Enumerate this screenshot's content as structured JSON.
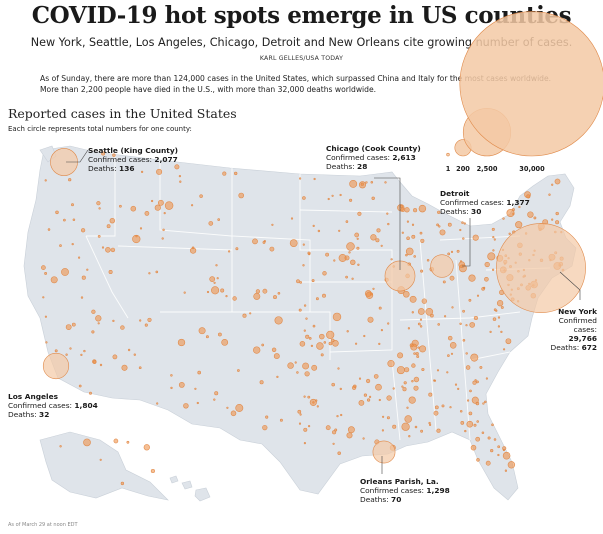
{
  "headline": "COVID-19 hot spots emerge in US counties",
  "dek": "New York, Seattle, Los Angeles, Chicago, Detroit and New Orleans cite growing number of cases.",
  "credit": "KARL GELLES/USA TODAY",
  "intro": [
    "As of Sunday, there are more than 124,000 cases in the United States, which surpassed China and Italy for the most cases worldwide.",
    "More than 2,200 people have died in the U.S., with more than 32,000 deaths worldwide."
  ],
  "section_title": "Reported cases in the United States",
  "section_subtitle": "Each circle represents total numbers for one county:",
  "footnote": "As of March 29 at noon EDT",
  "legend": {
    "items": [
      {
        "label": "1",
        "value": 1
      },
      {
        "label": "200",
        "value": 200
      },
      {
        "label": "2,500",
        "value": 2500
      },
      {
        "label": "30,000",
        "value": 30000
      }
    ]
  },
  "callouts": [
    {
      "name": "Seattle (King County)",
      "lines": [
        {
          "t": "Confirmed cases: ",
          "v": "2,077"
        },
        {
          "t": "Deaths: ",
          "v": "136"
        }
      ],
      "cases": 2077
    },
    {
      "name": "Chicago (Cook County)",
      "lines": [
        {
          "t": "Confirmed cases: ",
          "v": "2,613"
        },
        {
          "t": "Deaths: ",
          "v": "28"
        }
      ],
      "cases": 2613
    },
    {
      "name": "Detroit",
      "lines": [
        {
          "t": "Confirmed cases: ",
          "v": "1,377"
        },
        {
          "t": "Deaths: ",
          "v": "30"
        }
      ],
      "cases": 1377
    },
    {
      "name": "New York",
      "lines": [
        {
          "t": "Confirmed",
          "v": ""
        },
        {
          "t": "cases:",
          "v": ""
        },
        {
          "t": "",
          "v": "29,766"
        },
        {
          "t": "Deaths: ",
          "v": "672"
        }
      ],
      "cases": 29766
    },
    {
      "name": "Los Angeles",
      "lines": [
        {
          "t": "Confirmed cases: ",
          "v": "1,804"
        },
        {
          "t": "Deaths: ",
          "v": "32"
        }
      ],
      "cases": 1804
    },
    {
      "name": "Orleans Parish, La.",
      "lines": [
        {
          "t": "Confirmed cases: ",
          "v": "1,298"
        },
        {
          "t": "Deaths: ",
          "v": "70"
        }
      ],
      "cases": 1298
    }
  ],
  "colors": {
    "land": "#dfe4ea",
    "borders": "#ffffff",
    "bubble_fill": "#f3c9a5",
    "bubble_stroke": "#e08a4a",
    "bubble_dot": "#ef8a3c"
  }
}
